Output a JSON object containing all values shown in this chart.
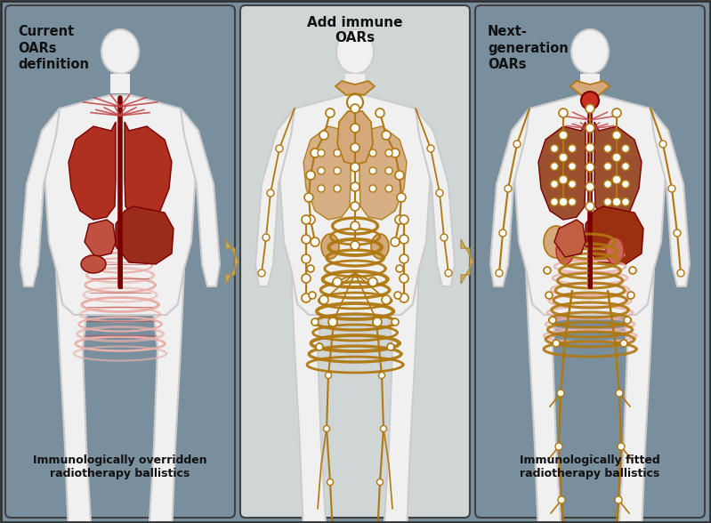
{
  "fig_width": 7.99,
  "fig_height": 5.88,
  "bg_outer": "#7a8f9e",
  "panel1_bg": "#7a8f9e",
  "panel2_bg": "#d0d5d5",
  "panel3_bg": "#7a8f9e",
  "body_fill": "#f0f0f0",
  "body_stroke": "#cccccc",
  "red_dark": "#7a0000",
  "red_mid": "#b03020",
  "red_light": "#cc6655",
  "red_pale": "#e8b0a8",
  "red_vein": "#c04040",
  "yellow_dark": "#b07810",
  "yellow_mid": "#c08820",
  "yellow_light": "#d4a030",
  "yellow_pale": "#e8c878",
  "thymus_fill": "#d4a878",
  "lymph_fill": "#d4a878",
  "panel1_title": "Current\nOARs\ndefinition",
  "panel2_title": "Add immune\nOARs",
  "panel3_title": "Next-\ngeneration\nOARs",
  "panel1_bottom": "Immunologically overridden\nradiotherapy ballistics",
  "panel3_bottom": "Immunologically fitted\nradiotherapy ballistics",
  "arrow_fill": "#d4b060",
  "arrow_edge": "#b09040",
  "text_color": "#111111",
  "white_dot": "#ffffff"
}
